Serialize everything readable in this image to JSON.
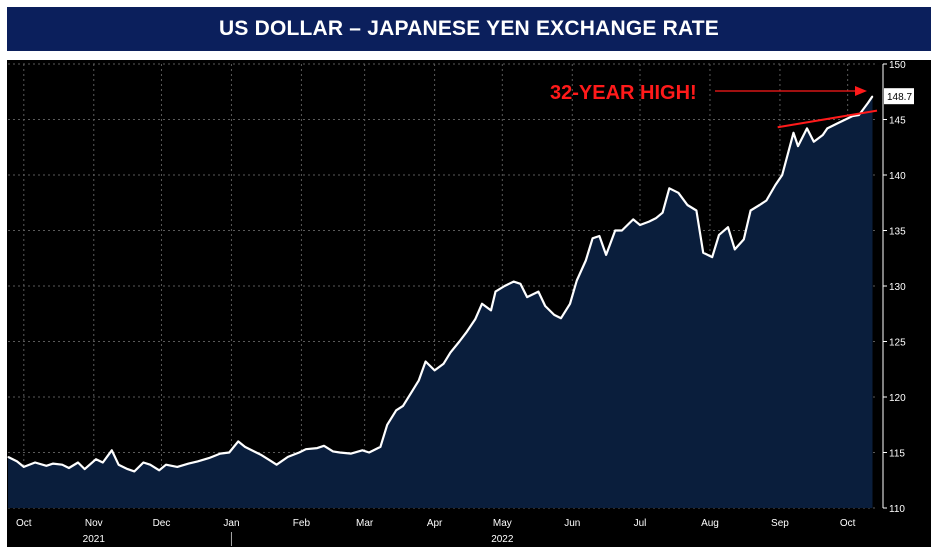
{
  "title": "US DOLLAR – JAPANESE YEN EXCHANGE RATE",
  "annotation": {
    "text": "32-YEAR HIGH!",
    "color": "#ff1a1a"
  },
  "colors": {
    "title_bg": "#0b1f5c",
    "plot_bg": "#000000",
    "area_fill": "#0a1e3c",
    "line": "#ffffff",
    "trend": "#ff1a1a",
    "grid": "#5a5a5a"
  },
  "chart_data": {
    "type": "area",
    "title": "US DOLLAR – JAPANESE YEN EXCHANGE RATE",
    "xlabel": "",
    "ylabel": "",
    "ylim": [
      110,
      150
    ],
    "yticks": [
      110,
      115,
      120,
      125,
      130,
      135,
      140,
      145,
      150
    ],
    "xlim": [
      "2021-09-24",
      "2022-10-14"
    ],
    "month_ticks": [
      {
        "label": "Oct",
        "date": "2021-10-01"
      },
      {
        "label": "Nov",
        "date": "2021-11-01"
      },
      {
        "label": "Dec",
        "date": "2021-12-01"
      },
      {
        "label": "Jan",
        "date": "2022-01-01"
      },
      {
        "label": "Feb",
        "date": "2022-02-01"
      },
      {
        "label": "Mar",
        "date": "2022-03-01"
      },
      {
        "label": "Apr",
        "date": "2022-04-01"
      },
      {
        "label": "May",
        "date": "2022-05-01"
      },
      {
        "label": "Jun",
        "date": "2022-06-01"
      },
      {
        "label": "Jul",
        "date": "2022-07-01"
      },
      {
        "label": "Aug",
        "date": "2022-08-01"
      },
      {
        "label": "Sep",
        "date": "2022-09-01"
      },
      {
        "label": "Oct",
        "date": "2022-10-01"
      }
    ],
    "year_labels": [
      {
        "label": "2021",
        "date": "2021-11-01"
      },
      {
        "label": "2022",
        "date": "2022-05-01"
      }
    ],
    "year_divider_date": "2022-01-01",
    "last_value_label": "148.7",
    "series": [
      {
        "x": [
          "2021-09-24",
          "2021-09-28",
          "2021-10-01",
          "2021-10-06",
          "2021-10-11",
          "2021-10-14",
          "2021-10-18",
          "2021-10-21",
          "2021-10-25",
          "2021-10-28",
          "2021-11-02",
          "2021-11-05",
          "2021-11-09",
          "2021-11-12",
          "2021-11-16",
          "2021-11-19",
          "2021-11-23",
          "2021-11-26",
          "2021-11-30",
          "2021-12-03",
          "2021-12-08",
          "2021-12-13",
          "2021-12-17",
          "2021-12-22",
          "2021-12-27",
          "2021-12-31",
          "2022-01-04",
          "2022-01-07",
          "2022-01-11",
          "2022-01-14",
          "2022-01-18",
          "2022-01-21",
          "2022-01-26",
          "2022-01-31",
          "2022-02-03",
          "2022-02-08",
          "2022-02-11",
          "2022-02-15",
          "2022-02-18",
          "2022-02-23",
          "2022-02-28",
          "2022-03-03",
          "2022-03-08",
          "2022-03-11",
          "2022-03-15",
          "2022-03-18",
          "2022-03-22",
          "2022-03-25",
          "2022-03-28",
          "2022-04-01",
          "2022-04-05",
          "2022-04-08",
          "2022-04-12",
          "2022-04-15",
          "2022-04-19",
          "2022-04-22",
          "2022-04-26",
          "2022-04-28",
          "2022-05-02",
          "2022-05-06",
          "2022-05-09",
          "2022-05-12",
          "2022-05-17",
          "2022-05-20",
          "2022-05-24",
          "2022-05-27",
          "2022-05-31",
          "2022-06-03",
          "2022-06-07",
          "2022-06-10",
          "2022-06-13",
          "2022-06-16",
          "2022-06-20",
          "2022-06-23",
          "2022-06-28",
          "2022-07-01",
          "2022-07-05",
          "2022-07-08",
          "2022-07-11",
          "2022-07-14",
          "2022-07-18",
          "2022-07-22",
          "2022-07-26",
          "2022-07-29",
          "2022-08-02",
          "2022-08-05",
          "2022-08-09",
          "2022-08-12",
          "2022-08-16",
          "2022-08-19",
          "2022-08-23",
          "2022-08-26",
          "2022-08-30",
          "2022-09-02",
          "2022-09-07",
          "2022-09-09",
          "2022-09-13",
          "2022-09-16",
          "2022-09-20",
          "2022-09-22",
          "2022-09-26",
          "2022-09-29",
          "2022-10-03",
          "2022-10-06",
          "2022-10-10",
          "2022-10-12"
        ],
        "y": [
          114.6,
          114.2,
          113.7,
          114.1,
          113.8,
          114.0,
          113.9,
          113.6,
          114.1,
          113.5,
          114.4,
          114.1,
          115.2,
          113.9,
          113.5,
          113.3,
          114.1,
          113.9,
          113.4,
          113.9,
          113.7,
          114.0,
          114.2,
          114.5,
          114.9,
          115.0,
          116.0,
          115.5,
          115.1,
          114.8,
          114.3,
          113.9,
          114.6,
          115.0,
          115.3,
          115.4,
          115.6,
          115.1,
          115.0,
          114.9,
          115.2,
          115.0,
          115.5,
          117.5,
          118.8,
          119.2,
          120.5,
          121.5,
          123.2,
          122.4,
          123.0,
          124.0,
          125.0,
          125.8,
          127.0,
          128.4,
          127.8,
          129.5,
          130.0,
          130.4,
          130.2,
          129.0,
          129.5,
          128.2,
          127.4,
          127.1,
          128.4,
          130.5,
          132.3,
          134.3,
          134.5,
          132.8,
          135.0,
          135.0,
          136.0,
          135.5,
          135.8,
          136.1,
          136.6,
          138.8,
          138.4,
          137.3,
          136.8,
          133.0,
          132.6,
          134.6,
          135.3,
          133.3,
          134.2,
          136.8,
          137.3,
          137.7,
          139.1,
          140.0,
          143.8,
          142.6,
          144.2,
          143.0,
          143.6,
          144.2,
          144.6,
          144.9,
          145.3,
          145.4,
          146.5,
          147.1
        ]
      }
    ],
    "trend_line": {
      "x": [
        "2022-08-31",
        "2022-10-14"
      ],
      "y": [
        144.3,
        145.8
      ]
    }
  }
}
